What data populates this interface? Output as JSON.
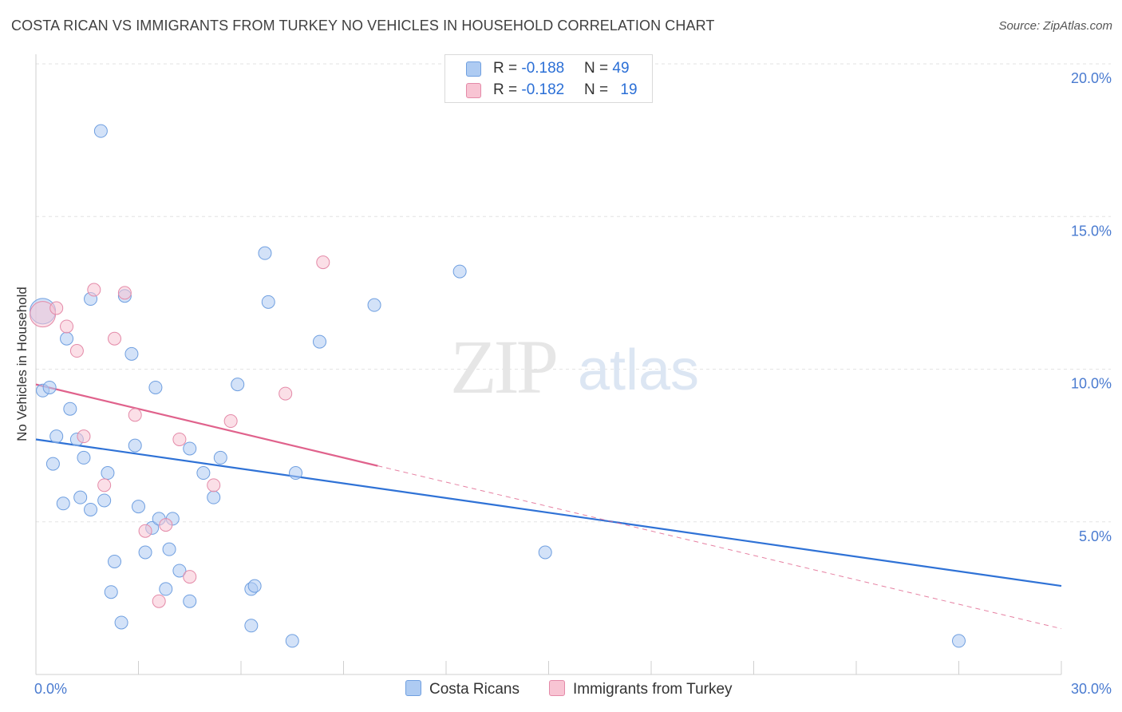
{
  "title": "COSTA RICAN VS IMMIGRANTS FROM TURKEY NO VEHICLES IN HOUSEHOLD CORRELATION CHART",
  "source": "Source: ZipAtlas.com",
  "watermark": {
    "zip": "ZIP",
    "atlas": "atlas"
  },
  "legend_top": {
    "rows": [
      {
        "r_label": "R = ",
        "r_value": "-0.188",
        "n_label": "N = ",
        "n_value": "49",
        "color": "#aecbf2",
        "border": "#6f9fe0"
      },
      {
        "r_label": "R = ",
        "r_value": "-0.182",
        "n_label": "N = ",
        "n_value": "19",
        "color": "#f8c4d3",
        "border": "#e48aa8"
      }
    ]
  },
  "legend_bottom": {
    "items": [
      {
        "label": "Costa Ricans",
        "color": "#aecbf2",
        "border": "#6f9fe0"
      },
      {
        "label": "Immigrants from Turkey",
        "color": "#f8c4d3",
        "border": "#e48aa8"
      }
    ]
  },
  "chart_data": {
    "type": "scatter",
    "title": "COSTA RICAN VS IMMIGRANTS FROM TURKEY NO VEHICLES IN HOUSEHOLD CORRELATION CHART",
    "xlabel": "",
    "ylabel": "No Vehicles in Household",
    "xlim": [
      0,
      30
    ],
    "ylim": [
      0,
      20
    ],
    "x_tick_labels": [
      {
        "value": 0,
        "label": "0.0%"
      },
      {
        "value": 30,
        "label": "30.0%"
      }
    ],
    "y_tick_labels": [
      {
        "value": 5,
        "label": "5.0%"
      },
      {
        "value": 10,
        "label": "10.0%"
      },
      {
        "value": 15,
        "label": "15.0%"
      },
      {
        "value": 20,
        "label": "20.0%"
      }
    ],
    "grid": true,
    "series": [
      {
        "name": "Costa Ricans",
        "color": "#aecbf2",
        "stroke": "#6f9fe0",
        "line_color": "#2f72d6",
        "points": [
          [
            0.2,
            11.9
          ],
          [
            0.2,
            9.3
          ],
          [
            0.4,
            9.4
          ],
          [
            0.5,
            6.9
          ],
          [
            0.6,
            7.8
          ],
          [
            0.8,
            5.6
          ],
          [
            0.9,
            11.0
          ],
          [
            1.0,
            8.7
          ],
          [
            1.2,
            7.7
          ],
          [
            1.3,
            5.8
          ],
          [
            1.4,
            7.1
          ],
          [
            1.6,
            5.4
          ],
          [
            1.6,
            12.3
          ],
          [
            1.9,
            17.8
          ],
          [
            2.0,
            5.7
          ],
          [
            2.1,
            6.6
          ],
          [
            2.2,
            2.7
          ],
          [
            2.3,
            3.7
          ],
          [
            2.6,
            12.4
          ],
          [
            2.5,
            1.7
          ],
          [
            2.8,
            10.5
          ],
          [
            2.9,
            7.5
          ],
          [
            3.0,
            5.5
          ],
          [
            3.2,
            4.0
          ],
          [
            3.4,
            4.8
          ],
          [
            3.5,
            9.4
          ],
          [
            3.6,
            5.1
          ],
          [
            3.8,
            2.8
          ],
          [
            3.9,
            4.1
          ],
          [
            4.0,
            5.1
          ],
          [
            4.2,
            3.4
          ],
          [
            4.5,
            2.4
          ],
          [
            4.5,
            7.4
          ],
          [
            4.9,
            6.6
          ],
          [
            5.2,
            5.8
          ],
          [
            5.4,
            7.1
          ],
          [
            5.9,
            9.5
          ],
          [
            6.3,
            1.6
          ],
          [
            6.3,
            2.8
          ],
          [
            6.4,
            2.9
          ],
          [
            6.7,
            13.8
          ],
          [
            6.8,
            12.2
          ],
          [
            7.5,
            1.1
          ],
          [
            7.6,
            6.6
          ],
          [
            8.3,
            10.9
          ],
          [
            9.9,
            12.1
          ],
          [
            12.4,
            13.2
          ],
          [
            14.9,
            4.0
          ],
          [
            27.0,
            1.1
          ]
        ]
      },
      {
        "name": "Immigrants from Turkey",
        "color": "#f8c4d3",
        "stroke": "#e48aa8",
        "line_color": "#e0628c",
        "points": [
          [
            0.2,
            11.8
          ],
          [
            0.6,
            12.0
          ],
          [
            0.9,
            11.4
          ],
          [
            1.2,
            10.6
          ],
          [
            1.4,
            7.8
          ],
          [
            1.7,
            12.6
          ],
          [
            2.0,
            6.2
          ],
          [
            2.3,
            11.0
          ],
          [
            2.6,
            12.5
          ],
          [
            2.9,
            8.5
          ],
          [
            3.2,
            4.7
          ],
          [
            3.6,
            2.4
          ],
          [
            3.8,
            4.9
          ],
          [
            4.2,
            7.7
          ],
          [
            4.5,
            3.2
          ],
          [
            5.2,
            6.2
          ],
          [
            5.7,
            8.3
          ],
          [
            7.3,
            9.2
          ],
          [
            8.4,
            13.5
          ]
        ]
      }
    ],
    "trend_lines": [
      {
        "series": "Costa Ricans",
        "x": [
          0,
          30
        ],
        "y": [
          7.7,
          2.9
        ],
        "dashed_from": null
      },
      {
        "series": "Immigrants from Turkey",
        "x": [
          0,
          30
        ],
        "y": [
          9.5,
          1.5
        ],
        "solid_until": 10
      }
    ]
  }
}
